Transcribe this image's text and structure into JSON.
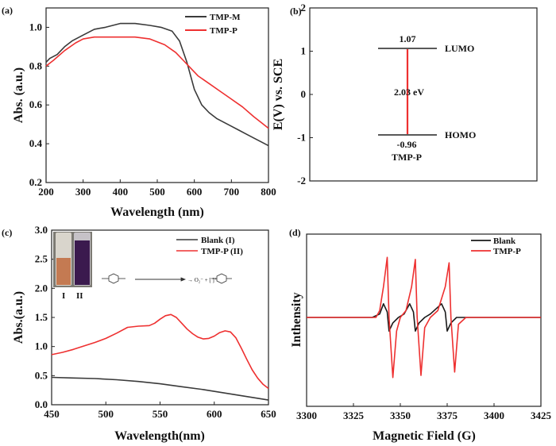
{
  "chart_data": [
    {
      "panel": "(a)",
      "type": "line",
      "xlabel": "Wavelength (nm)",
      "ylabel": "Abs. (a.u.)",
      "xlim": [
        200,
        800
      ],
      "ylim": [
        0.2,
        1.1
      ],
      "xticks": [
        "200",
        "300",
        "400",
        "500",
        "600",
        "700",
        "800"
      ],
      "yticks": [
        "0.2",
        "0.4",
        "0.6",
        "0.8",
        "1.0"
      ],
      "legend": "top-right",
      "series": [
        {
          "name": "TMP-M",
          "color": "#3a3a3a",
          "x": [
            200,
            210,
            230,
            250,
            270,
            300,
            330,
            360,
            400,
            440,
            480,
            510,
            540,
            560,
            580,
            600,
            620,
            640,
            660,
            680,
            700,
            720,
            740,
            760,
            780,
            800
          ],
          "y": [
            0.82,
            0.84,
            0.86,
            0.9,
            0.93,
            0.96,
            0.99,
            1.0,
            1.02,
            1.02,
            1.01,
            1.0,
            0.98,
            0.93,
            0.82,
            0.68,
            0.6,
            0.56,
            0.53,
            0.51,
            0.49,
            0.47,
            0.45,
            0.43,
            0.41,
            0.39
          ]
        },
        {
          "name": "TMP-P",
          "color": "#ee3030",
          "x": [
            200,
            220,
            250,
            280,
            300,
            330,
            360,
            400,
            440,
            480,
            520,
            550,
            570,
            590,
            610,
            640,
            670,
            700,
            730,
            760,
            780,
            800
          ],
          "y": [
            0.8,
            0.83,
            0.88,
            0.92,
            0.94,
            0.95,
            0.95,
            0.95,
            0.95,
            0.94,
            0.91,
            0.87,
            0.83,
            0.79,
            0.75,
            0.71,
            0.67,
            0.63,
            0.59,
            0.54,
            0.51,
            0.48
          ]
        }
      ]
    },
    {
      "panel": "(b)",
      "type": "energy-level",
      "ylabel": "E(V) vs. SCE",
      "ylim": [
        -2,
        2
      ],
      "yticks": [
        "-2",
        "-1",
        "0",
        "1",
        "2"
      ],
      "levels": [
        {
          "name": "LUMO",
          "value": 1.07,
          "label": "1.07"
        },
        {
          "name": "HOMO",
          "value": -0.96,
          "label": "-0.96"
        }
      ],
      "gap_label": "2.03 eV",
      "sample_label": "TMP-P"
    },
    {
      "panel": "(c)",
      "type": "line",
      "xlabel": "Wavelength(nm)",
      "ylabel": "Abs.(a.u.)",
      "xlim": [
        450,
        650
      ],
      "ylim": [
        0,
        3.0
      ],
      "xticks": [
        "450",
        "500",
        "550",
        "600",
        "650"
      ],
      "yticks": [
        "0.0",
        "0.5",
        "1.0",
        "1.5",
        "2.0",
        "2.5",
        "3.0"
      ],
      "legend": "top-right",
      "series": [
        {
          "name": "Blank (I)",
          "color": "#3a3a3a",
          "x": [
            450,
            470,
            490,
            510,
            530,
            550,
            570,
            590,
            610,
            630,
            650
          ],
          "y": [
            0.47,
            0.46,
            0.45,
            0.43,
            0.4,
            0.36,
            0.31,
            0.26,
            0.2,
            0.14,
            0.08
          ]
        },
        {
          "name": "TMP-P (II)",
          "color": "#ee3030",
          "x": [
            450,
            460,
            470,
            480,
            490,
            500,
            510,
            520,
            530,
            540,
            545,
            550,
            555,
            560,
            565,
            570,
            575,
            580,
            585,
            590,
            595,
            600,
            605,
            610,
            615,
            620,
            625,
            630,
            635,
            640,
            645,
            650
          ],
          "y": [
            0.86,
            0.9,
            0.95,
            1.01,
            1.07,
            1.14,
            1.23,
            1.33,
            1.35,
            1.36,
            1.4,
            1.47,
            1.53,
            1.55,
            1.5,
            1.4,
            1.3,
            1.22,
            1.16,
            1.13,
            1.14,
            1.18,
            1.24,
            1.27,
            1.25,
            1.15,
            0.97,
            0.78,
            0.6,
            0.46,
            0.35,
            0.28
          ]
        }
      ],
      "inset": {
        "vial_labels": [
          "I",
          "II"
        ],
        "reaction": "→ O₂⁻ + [ ]⁺"
      }
    },
    {
      "panel": "(d)",
      "type": "line",
      "xlabel": "Magnetic Field (G)",
      "ylabel": "Inthensity",
      "xlim": [
        3300,
        3425
      ],
      "xticks": [
        "3300",
        "3325",
        "3350",
        "3375",
        "3400",
        "3425"
      ],
      "legend": "top-right",
      "series": [
        {
          "name": "Blank",
          "color": "#1a1a1a",
          "x": [
            3300,
            3335,
            3339,
            3341,
            3343,
            3344,
            3346,
            3349,
            3352,
            3355,
            3357,
            3358,
            3360,
            3363,
            3366,
            3372,
            3374,
            3375,
            3377,
            3380,
            3385,
            3425
          ],
          "y": [
            0,
            0,
            0.05,
            0.2,
            0.08,
            -0.2,
            -0.08,
            0,
            0.05,
            0.2,
            0.08,
            -0.2,
            -0.08,
            0,
            0.05,
            0.2,
            0.08,
            -0.2,
            -0.08,
            0,
            0,
            0
          ]
        },
        {
          "name": "TMP-P",
          "color": "#ee3030",
          "x": [
            3300,
            3337,
            3339,
            3341,
            3343,
            3344,
            3346,
            3348,
            3350,
            3353,
            3356,
            3358,
            3359,
            3361,
            3363,
            3366,
            3370,
            3374,
            3376,
            3377,
            3379,
            3381,
            3385,
            3425
          ],
          "y": [
            0,
            0,
            0.1,
            0.45,
            0.88,
            0,
            -0.88,
            -0.2,
            0,
            0.1,
            0.45,
            0.85,
            0,
            -0.85,
            -0.15,
            0,
            0.1,
            0.45,
            0.8,
            0,
            -0.8,
            -0.1,
            0,
            0
          ]
        }
      ]
    }
  ]
}
